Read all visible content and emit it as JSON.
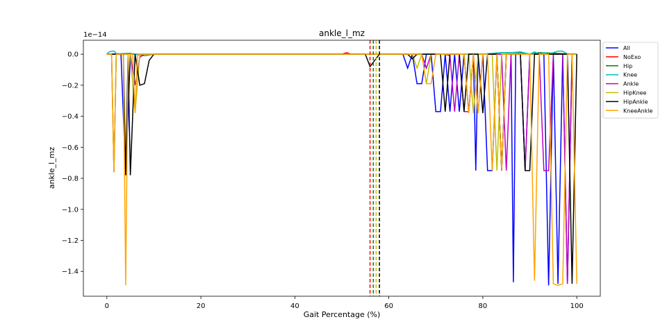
{
  "chart_data": {
    "type": "line",
    "title": "ankle_l_mz",
    "xlabel": "Gait Percentage (%)",
    "ylabel": "ankle_l_mz",
    "offset_label": "1e−14",
    "xlim": [
      -5,
      105
    ],
    "ylim": [
      -1.56,
      0.09
    ],
    "xticks": [
      0,
      20,
      40,
      60,
      80,
      100
    ],
    "yticks": [
      0.0,
      -0.2,
      -0.4,
      -0.6,
      -0.8,
      -1.0,
      -1.2,
      -1.4
    ],
    "grid": false,
    "legend_position": "upper right (outside plot)",
    "series": [
      {
        "name": "All",
        "color": "#0000ff",
        "x": [
          0,
          1,
          1.5,
          2,
          3,
          4,
          5,
          6,
          8,
          10,
          20,
          40,
          55,
          60,
          63,
          64,
          65,
          66,
          67,
          68,
          69,
          70,
          71,
          72,
          73,
          74,
          75,
          76,
          77,
          78,
          78.5,
          79,
          80,
          81,
          82,
          83,
          84,
          85,
          86,
          86.5,
          87,
          88,
          89,
          90,
          91,
          92,
          93,
          94,
          95,
          96,
          97,
          98,
          99,
          100
        ],
        "y": [
          0,
          0,
          -0.76,
          0,
          0,
          -0.78,
          0,
          0,
          0,
          0,
          0,
          0,
          0,
          0,
          0,
          -0.09,
          0,
          -0.19,
          -0.19,
          0,
          0,
          -0.37,
          -0.37,
          0,
          -0.37,
          0,
          -0.37,
          0,
          -0.38,
          0,
          -0.75,
          0,
          0,
          -0.75,
          -0.75,
          0,
          -0.75,
          0,
          0,
          -1.47,
          0,
          0,
          -0.75,
          0,
          0,
          0,
          0,
          -1.49,
          0,
          -1.48,
          0,
          -1.48,
          0,
          0
        ]
      },
      {
        "name": "NoExo",
        "color": "#ff0000",
        "x": [
          0,
          20,
          45,
          50,
          51,
          52,
          55,
          60,
          100
        ],
        "y": [
          0,
          0,
          0,
          0,
          0.01,
          0,
          0,
          0,
          0
        ]
      },
      {
        "name": "Hip",
        "color": "#008000",
        "x": [
          0,
          5,
          8,
          10,
          20,
          40,
          55,
          60,
          80,
          84,
          86,
          88,
          90,
          92,
          100
        ],
        "y": [
          0,
          0.005,
          -0.01,
          0,
          0,
          0,
          0,
          0,
          0,
          0.01,
          0.01,
          0.01,
          0,
          0.01,
          0
        ]
      },
      {
        "name": "Knee",
        "color": "#00bfbf",
        "x": [
          0,
          0.5,
          1,
          1.5,
          2,
          3,
          4,
          6,
          8,
          10,
          20,
          40,
          55,
          60,
          80,
          82,
          84,
          86,
          88,
          90,
          91,
          92,
          93,
          94,
          95,
          96,
          97,
          98,
          100
        ],
        "y": [
          0,
          0.015,
          0.02,
          0.02,
          0.005,
          0,
          0,
          0,
          -0.01,
          0,
          0,
          0,
          0,
          0,
          0,
          0.005,
          0.01,
          0.01,
          0.015,
          0,
          0.015,
          0,
          0.01,
          0,
          0.01,
          0.02,
          0.02,
          0,
          0
        ]
      },
      {
        "name": "Ankle",
        "color": "#bf00bf",
        "x": [
          0,
          1,
          2,
          3,
          5,
          6,
          7,
          8,
          10,
          20,
          40,
          60,
          64,
          65,
          66,
          67,
          68,
          69,
          70,
          71,
          72,
          73,
          74,
          75,
          76,
          77,
          78,
          79,
          80,
          81,
          82,
          83,
          84,
          85,
          86,
          87,
          88,
          89,
          90,
          91,
          92,
          93,
          94,
          95,
          96,
          97,
          98,
          99,
          100
        ],
        "y": [
          0,
          0,
          0,
          0,
          0,
          -0.2,
          -0.02,
          0,
          0,
          0,
          0,
          0,
          0,
          0,
          0,
          0,
          -0.09,
          0,
          0,
          0,
          0,
          -0.01,
          -0.37,
          0,
          -0.37,
          -0.37,
          0,
          -0.38,
          0,
          0,
          0,
          0,
          0,
          -0.75,
          0,
          0,
          0,
          -0.75,
          0,
          0,
          0,
          -0.75,
          -0.75,
          0,
          0,
          0,
          -1.48,
          0,
          0
        ]
      },
      {
        "name": "HipKnee",
        "color": "#bfbf00",
        "x": [
          0,
          1,
          1.5,
          2,
          3,
          5,
          6,
          7,
          8,
          10,
          20,
          40,
          55,
          60,
          65,
          66,
          67,
          68,
          69,
          70,
          75,
          77,
          78,
          79,
          80,
          81,
          82,
          83,
          84,
          85,
          86,
          87,
          88,
          90,
          92,
          95,
          96,
          97,
          98,
          100
        ],
        "y": [
          0,
          0,
          -0.76,
          0,
          0,
          0,
          -0.38,
          0,
          0,
          0,
          0,
          0,
          0,
          0,
          0,
          -0.09,
          0,
          -0.19,
          0,
          0,
          0,
          0,
          -0.38,
          0,
          0,
          0,
          0,
          -0.75,
          0,
          0,
          0,
          0,
          0,
          0,
          0,
          0,
          0,
          0,
          0,
          0
        ]
      },
      {
        "name": "HipAnkle",
        "color": "#000000",
        "x": [
          0,
          2,
          3,
          3.5,
          4,
          4.5,
          5,
          6,
          7,
          8,
          9,
          10,
          20,
          40,
          54,
          55,
          56,
          57,
          58,
          60,
          64,
          65,
          66,
          67,
          68,
          69,
          70,
          71,
          72,
          73,
          74,
          75,
          76,
          77,
          78,
          79,
          80,
          81,
          82,
          83,
          84,
          85,
          86,
          87,
          88,
          89,
          90,
          91,
          92,
          93,
          94,
          95,
          96,
          97,
          98,
          99,
          100
        ],
        "y": [
          0,
          0,
          0,
          0,
          -0.78,
          0,
          -0.78,
          0,
          -0.2,
          -0.19,
          -0.04,
          0,
          0,
          0,
          0,
          0,
          -0.08,
          -0.04,
          0,
          0,
          0,
          -0.03,
          0,
          0,
          0,
          0,
          0,
          0,
          -0.37,
          0,
          0,
          0,
          -0.37,
          0,
          0,
          0,
          -0.38,
          0,
          0,
          0,
          -0.75,
          0,
          0,
          0,
          0,
          -0.75,
          -0.75,
          0,
          0,
          0,
          0,
          0,
          0,
          0,
          0,
          -1.48,
          0
        ]
      },
      {
        "name": "KneeAnkle",
        "color": "#ffa500",
        "x": [
          0,
          0.5,
          1,
          1.5,
          2,
          3,
          3.5,
          4,
          4.5,
          5,
          5.5,
          6,
          6.5,
          7,
          8,
          10,
          20,
          40,
          55,
          60,
          66,
          67,
          68,
          69,
          70,
          71,
          72,
          73,
          74,
          75,
          76,
          77,
          78,
          79,
          80,
          81,
          82,
          83,
          84,
          85,
          86,
          87,
          88,
          89,
          90,
          91,
          92,
          93,
          94,
          95,
          96,
          97,
          98,
          99,
          100
        ],
        "y": [
          0,
          0,
          0,
          -0.76,
          0,
          0,
          0,
          -1.49,
          0,
          0,
          0,
          -0.38,
          0,
          0,
          0,
          0,
          0,
          0,
          0,
          0,
          0,
          0,
          -0.19,
          -0.19,
          0,
          0,
          0,
          0,
          0,
          0,
          0,
          -0.38,
          0,
          -0.38,
          0,
          0,
          -0.75,
          0,
          -0.75,
          0,
          0,
          0,
          0,
          0,
          0,
          -1.46,
          0,
          0,
          0,
          -1.48,
          -1.49,
          -1.48,
          0,
          0,
          -1.48
        ]
      }
    ],
    "vlines": [
      {
        "x": 56.0,
        "color": "#ff0000"
      },
      {
        "x": 56.7,
        "color": "#008000"
      },
      {
        "x": 57.3,
        "color": "#bfbf00"
      },
      {
        "x": 58.0,
        "color": "#000000"
      }
    ]
  }
}
